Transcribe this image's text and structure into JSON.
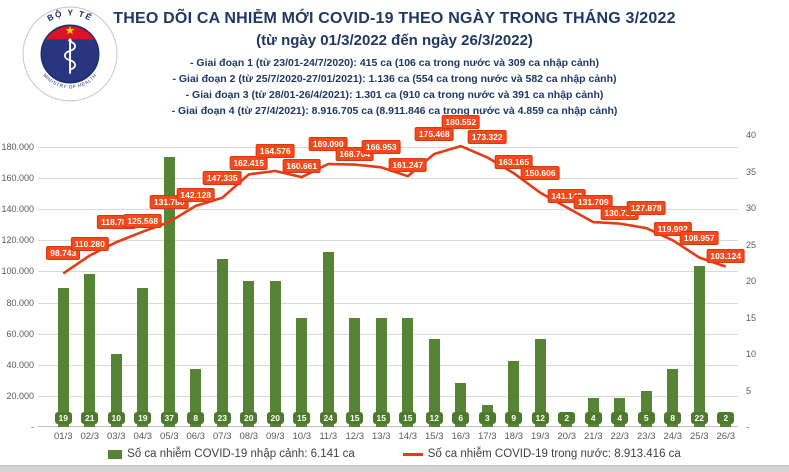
{
  "header": {
    "title": "THEO DÕI CA NHIỄM MỚI COVID-19 THEO NGÀY TRONG THÁNG 3/2022",
    "subtitle": "(từ ngày 01/3/2022 đến ngày 26/3/2022)",
    "phases": [
      "- Giai đoạn 1 (từ 23/01-24/7/2020): 415 ca (106 ca trong nước và 309 ca nhập cảnh)",
      "- Giai đoạn 2 (từ 25/7/2020-27/01/2021): 1.136 ca (554 ca trong nước và 582 ca nhập cảnh)",
      "- Giai đoạn 3 (từ 28/01-26/4/2021): 1.301 ca (910 ca trong nước và 391 ca nhập cảnh)",
      "- Giai đoạn 4 (từ 27/4/2021): 8.916.705 ca (8.911.846 ca trong nước và 4.859 ca nhập cảnh)"
    ],
    "logo": {
      "top_text": "BỘ Y TẾ",
      "bottom_text": "MINISTRY OF HEALTH"
    }
  },
  "colors": {
    "bar": "#568334",
    "bar_box": "#4e7a2d",
    "line": "#e63c15",
    "label_bg": "#f3491c",
    "navy": "#1f3864"
  },
  "chart_data": {
    "type": "bar+line combo",
    "categories": [
      "01/3",
      "02/3",
      "03/3",
      "04/3",
      "05/3",
      "06/3",
      "07/3",
      "08/3",
      "09/3",
      "10/3",
      "11/3",
      "12/3",
      "13/3",
      "14/3",
      "15/3",
      "16/3",
      "17/3",
      "18/3",
      "19/3",
      "20/3",
      "21/3",
      "22/3",
      "23/3",
      "24/3",
      "25/3",
      "26/3"
    ],
    "series": [
      {
        "name": "Số ca nhiễm COVID-19 nhập cảnh: 6.141 ca",
        "type": "bar",
        "axis": "right",
        "values": [
          19,
          21,
          10,
          19,
          37,
          8,
          23,
          20,
          20,
          15,
          24,
          15,
          15,
          15,
          12,
          6,
          3,
          9,
          12,
          2,
          4,
          4,
          5,
          8,
          22,
          2
        ]
      },
      {
        "name": "Số ca nhiễm COVID-19 trong nước: 8.913.416 ca",
        "type": "line",
        "axis": "left",
        "values": [
          98743,
          110280,
          118780,
          125568,
          131780,
          142128,
          147335,
          162415,
          164576,
          160661,
          169090,
          168704,
          166953,
          161247,
          175468,
          180552,
          173322,
          163165,
          150606,
          141149,
          131709,
          130731,
          127878,
          119992,
          108957,
          103124
        ],
        "labels": [
          "98.743",
          "110.280",
          "118.780",
          "125.568",
          "131.780",
          "142.128",
          "147.335",
          "162.415",
          "164.576",
          "160.661",
          "169.090",
          "168.704",
          "166.953",
          "161.247",
          "175.468",
          "180.552",
          "173.322",
          "163.165",
          "150.606",
          "141.149",
          "131.709",
          "130.731",
          "127.878",
          "119.992",
          "108.957",
          "103.124"
        ]
      }
    ],
    "left_axis": {
      "ticks": [
        "180.000",
        "160.000",
        "140.000",
        "120.000",
        "100.000",
        "80.000",
        "60.000",
        "40.000",
        "20.000",
        "-"
      ],
      "tick_step": 20000,
      "range": [
        0,
        187714
      ]
    },
    "right_axis": {
      "ticks": [
        "40",
        "35",
        "30",
        "25",
        "20",
        "15",
        "10",
        "5",
        "-"
      ],
      "tick_step": 5,
      "range": [
        0,
        40
      ]
    },
    "grid": true,
    "legend_position": "bottom"
  }
}
